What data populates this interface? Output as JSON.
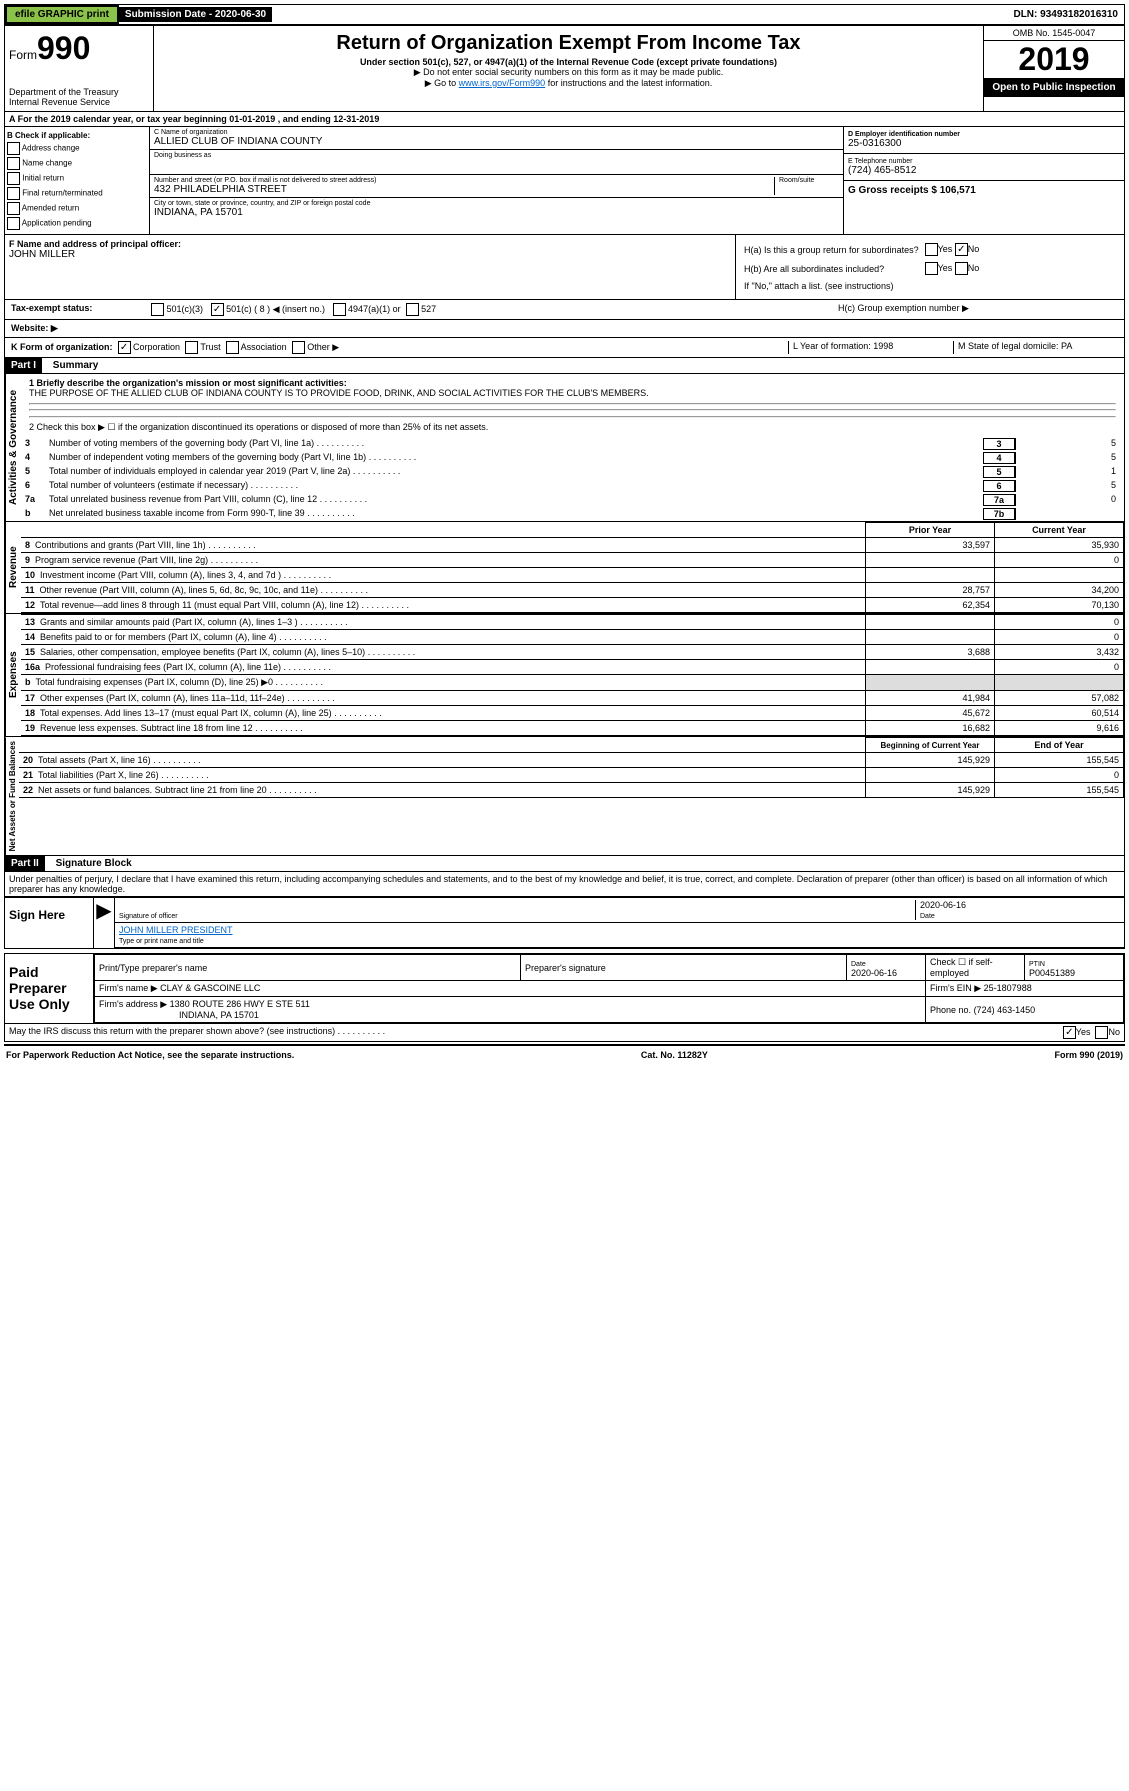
{
  "topbar": {
    "efile": "efile GRAPHIC print",
    "sub_label": "Submission Date - 2020-06-30",
    "dln": "DLN: 93493182016310"
  },
  "header": {
    "form_label": "Form",
    "form_num": "990",
    "dept": "Department of the Treasury",
    "irs": "Internal Revenue Service",
    "title": "Return of Organization Exempt From Income Tax",
    "subtitle": "Under section 501(c), 527, or 4947(a)(1) of the Internal Revenue Code (except private foundations)",
    "note1": "▶ Do not enter social security numbers on this form as it may be made public.",
    "note2_pre": "▶ Go to ",
    "note2_link": "www.irs.gov/Form990",
    "note2_post": " for instructions and the latest information.",
    "omb": "OMB No. 1545-0047",
    "year": "2019",
    "open": "Open to Public Inspection"
  },
  "section_a": "A For the 2019 calendar year, or tax year beginning 01-01-2019   , and ending 12-31-2019",
  "box_b": {
    "title": "B Check if applicable:",
    "items": [
      "Address change",
      "Name change",
      "Initial return",
      "Final return/terminated",
      "Amended return",
      "Application pending"
    ]
  },
  "box_c": {
    "name_label": "C Name of organization",
    "name": "ALLIED CLUB OF INDIANA COUNTY",
    "dba_label": "Doing business as",
    "addr_label": "Number and street (or P.O. box if mail is not delivered to street address)",
    "room_label": "Room/suite",
    "addr": "432 PHILADELPHIA STREET",
    "city_label": "City or town, state or province, country, and ZIP or foreign postal code",
    "city": "INDIANA, PA  15701"
  },
  "box_d": {
    "label": "D Employer identification number",
    "val": "25-0316300"
  },
  "box_e": {
    "label": "E Telephone number",
    "val": "(724) 465-8512"
  },
  "box_g": {
    "label": "G Gross receipts $ 106,571"
  },
  "box_f": {
    "label": "F  Name and address of principal officer:",
    "val": "JOHN MILLER"
  },
  "box_h": {
    "ha": "H(a)  Is this a group return for subordinates?",
    "hb": "H(b)  Are all subordinates included?",
    "hb_note": "If \"No,\" attach a list. (see instructions)",
    "hc": "H(c)  Group exemption number ▶"
  },
  "tax_exempt": {
    "label": "Tax-exempt status:",
    "opts": [
      "501(c)(3)",
      "501(c) ( 8 ) ◀ (insert no.)",
      "4947(a)(1) or",
      "527"
    ]
  },
  "website": "Website: ▶",
  "row_k": "K Form of organization:",
  "k_opts": [
    "Corporation",
    "Trust",
    "Association",
    "Other ▶"
  ],
  "row_l": "L Year of formation: 1998",
  "row_m": "M State of legal domicile: PA",
  "part1": {
    "header": "Part I",
    "title": "Summary",
    "q1": "1  Briefly describe the organization's mission or most significant activities:",
    "q1_ans": "THE PURPOSE OF THE ALLIED CLUB OF INDIANA COUNTY IS TO PROVIDE FOOD, DRINK, AND SOCIAL ACTIVITIES FOR THE CLUB'S MEMBERS.",
    "q2": "2   Check this box ▶ ☐  if the organization discontinued its operations or disposed of more than 25% of its net assets.",
    "lines_gov": [
      {
        "n": "3",
        "d": "Number of voting members of the governing body (Part VI, line 1a)",
        "box": "3",
        "v": "5"
      },
      {
        "n": "4",
        "d": "Number of independent voting members of the governing body (Part VI, line 1b)",
        "box": "4",
        "v": "5"
      },
      {
        "n": "5",
        "d": "Total number of individuals employed in calendar year 2019 (Part V, line 2a)",
        "box": "5",
        "v": "1"
      },
      {
        "n": "6",
        "d": "Total number of volunteers (estimate if necessary)",
        "box": "6",
        "v": "5"
      },
      {
        "n": "7a",
        "d": "Total unrelated business revenue from Part VIII, column (C), line 12",
        "box": "7a",
        "v": "0"
      },
      {
        "n": "b",
        "d": "Net unrelated business taxable income from Form 990-T, line 39",
        "box": "7b",
        "v": ""
      }
    ],
    "col_prior": "Prior Year",
    "col_current": "Current Year",
    "lines_rev": [
      {
        "n": "8",
        "d": "Contributions and grants (Part VIII, line 1h)",
        "p": "33,597",
        "c": "35,930"
      },
      {
        "n": "9",
        "d": "Program service revenue (Part VIII, line 2g)",
        "p": "",
        "c": "0"
      },
      {
        "n": "10",
        "d": "Investment income (Part VIII, column (A), lines 3, 4, and 7d )",
        "p": "",
        "c": ""
      },
      {
        "n": "11",
        "d": "Other revenue (Part VIII, column (A), lines 5, 6d, 8c, 9c, 10c, and 11e)",
        "p": "28,757",
        "c": "34,200"
      },
      {
        "n": "12",
        "d": "Total revenue—add lines 8 through 11 (must equal Part VIII, column (A), line 12)",
        "p": "62,354",
        "c": "70,130"
      }
    ],
    "lines_exp": [
      {
        "n": "13",
        "d": "Grants and similar amounts paid (Part IX, column (A), lines 1–3 )",
        "p": "",
        "c": "0"
      },
      {
        "n": "14",
        "d": "Benefits paid to or for members (Part IX, column (A), line 4)",
        "p": "",
        "c": "0"
      },
      {
        "n": "15",
        "d": "Salaries, other compensation, employee benefits (Part IX, column (A), lines 5–10)",
        "p": "3,688",
        "c": "3,432"
      },
      {
        "n": "16a",
        "d": "Professional fundraising fees (Part IX, column (A), line 11e)",
        "p": "",
        "c": "0"
      },
      {
        "n": "b",
        "d": "Total fundraising expenses (Part IX, column (D), line 25) ▶0",
        "p": "",
        "c": ""
      },
      {
        "n": "17",
        "d": "Other expenses (Part IX, column (A), lines 11a–11d, 11f–24e)",
        "p": "41,984",
        "c": "57,082"
      },
      {
        "n": "18",
        "d": "Total expenses. Add lines 13–17 (must equal Part IX, column (A), line 25)",
        "p": "45,672",
        "c": "60,514"
      },
      {
        "n": "19",
        "d": "Revenue less expenses. Subtract line 18 from line 12",
        "p": "16,682",
        "c": "9,616"
      }
    ],
    "col_begin": "Beginning of Current Year",
    "col_end": "End of Year",
    "lines_net": [
      {
        "n": "20",
        "d": "Total assets (Part X, line 16)",
        "p": "145,929",
        "c": "155,545"
      },
      {
        "n": "21",
        "d": "Total liabilities (Part X, line 26)",
        "p": "",
        "c": "0"
      },
      {
        "n": "22",
        "d": "Net assets or fund balances. Subtract line 21 from line 20",
        "p": "145,929",
        "c": "155,545"
      }
    ]
  },
  "part2": {
    "header": "Part II",
    "title": "Signature Block",
    "perjury": "Under penalties of perjury, I declare that I have examined this return, including accompanying schedules and statements, and to the best of my knowledge and belief, it is true, correct, and complete. Declaration of preparer (other than officer) is based on all information of which preparer has any knowledge."
  },
  "sign": {
    "label": "Sign Here",
    "sig_label": "Signature of officer",
    "date": "2020-06-16",
    "date_label": "Date",
    "name": "JOHN MILLER  PRESIDENT",
    "name_label": "Type or print name and title"
  },
  "paid": {
    "label": "Paid Preparer Use Only",
    "h1": "Print/Type preparer's name",
    "h2": "Preparer's signature",
    "h3": "Date",
    "h3v": "2020-06-16",
    "h4": "Check ☐ if self-employed",
    "h5": "PTIN",
    "h5v": "P00451389",
    "firm_label": "Firm's name    ▶",
    "firm": "CLAY & GASCOINE LLC",
    "ein_label": "Firm's EIN ▶",
    "ein": "25-1807988",
    "addr_label": "Firm's address ▶",
    "addr1": "1380 ROUTE 286 HWY E STE 511",
    "addr2": "INDIANA, PA  15701",
    "phone_label": "Phone no.",
    "phone": "(724) 463-1450"
  },
  "discuss": "May the IRS discuss this return with the preparer shown above? (see instructions)",
  "footer": {
    "left": "For Paperwork Reduction Act Notice, see the separate instructions.",
    "mid": "Cat. No. 11282Y",
    "right": "Form 990 (2019)"
  },
  "vert_labels": {
    "gov": "Activities & Governance",
    "rev": "Revenue",
    "exp": "Expenses",
    "net": "Net Assets or Fund Balances"
  }
}
